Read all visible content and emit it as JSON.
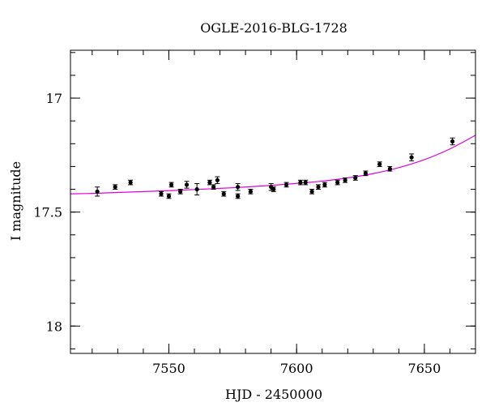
{
  "chart_data": {
    "type": "scatter",
    "title": "OGLE-2016-BLG-1728",
    "xlabel": "HJD - 2450000",
    "ylabel": "I magnitude",
    "xlim": [
      7511.5,
      7670
    ],
    "ylim": [
      18.12,
      16.79
    ],
    "y_inverted": true,
    "grid": false,
    "x_ticks": [
      7550,
      7600,
      7650
    ],
    "y_ticks": [
      17,
      17.5,
      18
    ],
    "x_minor_step": 10,
    "y_minor_step": 0.1,
    "tick_labels": {
      "x": [
        "7550",
        "7600",
        "7650"
      ],
      "y": [
        "17",
        "17.5",
        "18"
      ]
    },
    "colors": {
      "points": "#000000",
      "model": "#e000e0",
      "axes": "#000000"
    },
    "series": [
      {
        "kind": "points_with_errorbars",
        "x": [
          7522,
          7529,
          7535,
          7547,
          7550,
          7551,
          7554.5,
          7557,
          7561,
          7566,
          7567.5,
          7569,
          7571.5,
          7577,
          7577,
          7582,
          7590,
          7591,
          7596,
          7601.5,
          7603.5,
          7606,
          7608.5,
          7611,
          7616,
          7619,
          7623,
          7627,
          7632.5,
          7636.5,
          7645,
          7661
        ],
        "y": [
          17.41,
          17.39,
          17.37,
          17.42,
          17.43,
          17.38,
          17.41,
          17.38,
          17.4,
          17.37,
          17.39,
          17.36,
          17.42,
          17.39,
          17.43,
          17.41,
          17.39,
          17.4,
          17.38,
          17.37,
          17.37,
          17.41,
          17.39,
          17.38,
          17.37,
          17.36,
          17.35,
          17.33,
          17.29,
          17.31,
          17.26,
          17.19
        ],
        "err": [
          0.02,
          0.01,
          0.01,
          0.01,
          0.01,
          0.01,
          0.01,
          0.015,
          0.025,
          0.01,
          0.01,
          0.015,
          0.01,
          0.015,
          0.01,
          0.01,
          0.015,
          0.01,
          0.01,
          0.01,
          0.01,
          0.01,
          0.01,
          0.01,
          0.01,
          0.01,
          0.01,
          0.01,
          0.01,
          0.01,
          0.015,
          0.015
        ]
      },
      {
        "kind": "model_curve",
        "x": [
          7511.5,
          7520,
          7530,
          7540,
          7550,
          7560,
          7570,
          7580,
          7590,
          7600,
          7610,
          7620,
          7630,
          7640,
          7650,
          7660,
          7670
        ],
        "y": [
          17.42,
          17.418,
          17.414,
          17.41,
          17.406,
          17.401,
          17.396,
          17.39,
          17.383,
          17.374,
          17.364,
          17.35,
          17.331,
          17.305,
          17.27,
          17.223,
          17.163
        ]
      }
    ]
  }
}
